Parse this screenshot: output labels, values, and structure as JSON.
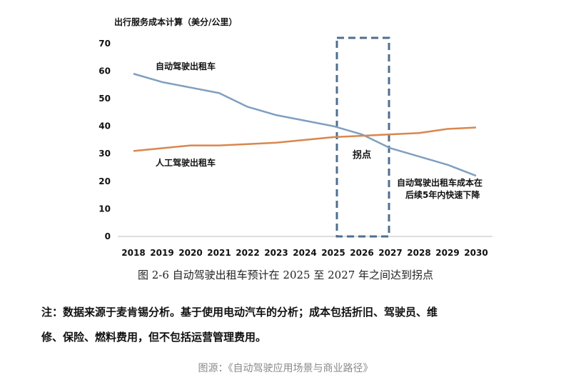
{
  "chart_data": {
    "type": "line",
    "ylabel": "出行服务成本计算（美分/公里）",
    "x": [
      2018,
      2019,
      2020,
      2021,
      2022,
      2023,
      2024,
      2025,
      2026,
      2027,
      2028,
      2029,
      2030
    ],
    "ylim": [
      0,
      70
    ],
    "yticks": [
      0,
      10,
      20,
      30,
      40,
      50,
      60,
      70
    ],
    "series": [
      {
        "name": "自动驾驶出租车",
        "color": "#7f9fbf",
        "values": [
          59,
          56,
          54,
          52,
          47,
          44,
          42,
          40,
          37,
          32,
          29,
          26,
          22
        ]
      },
      {
        "name": "人工驾驶出租车",
        "color": "#d9874f",
        "values": [
          31,
          32,
          33,
          33,
          33.5,
          34,
          35,
          36,
          36.5,
          37,
          37.5,
          39,
          39.5
        ]
      }
    ],
    "annotations": [
      {
        "text": "拐点",
        "x_range": [
          2025,
          2027
        ]
      },
      {
        "text_lines": [
          "自动驾驶出租车成本在",
          "后续5年内快速下降"
        ]
      }
    ],
    "grid": false
  },
  "caption": "图 2-6  自动驾驶出租车预计在 2025 至 2027 年之间达到拐点",
  "note_line1": "注：数据来源于麦肯锡分析。基于使用电动汽车的分析；成本包括折旧、驾驶员、维",
  "note_line2": "修、保险、燃料费用，但不包括运营管理费用。",
  "source": "图源：《自动驾驶应用场景与商业路径》"
}
